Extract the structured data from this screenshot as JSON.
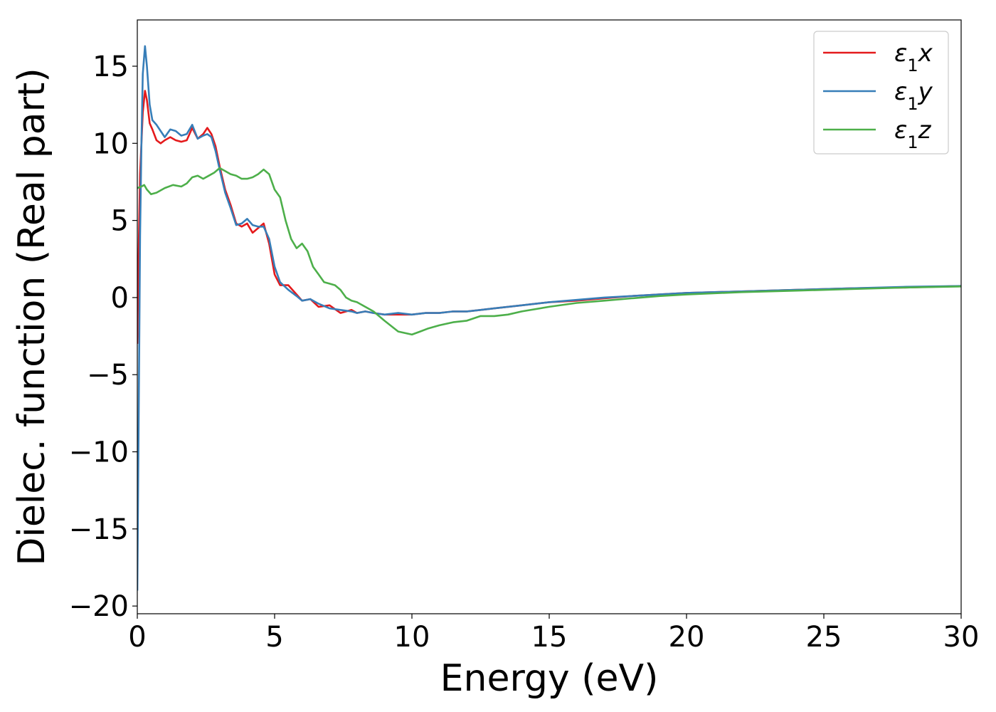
{
  "chart_data": {
    "type": "line",
    "title": "",
    "xlabel": "Energy (eV)",
    "ylabel": "Dielec. function (Real part)",
    "xlim": [
      0,
      30
    ],
    "ylim": [
      -20.5,
      18
    ],
    "xticks": [
      0,
      5,
      10,
      15,
      20,
      25,
      30
    ],
    "xtick_labels": [
      "0",
      "5",
      "10",
      "15",
      "20",
      "25",
      "30"
    ],
    "yticks": [
      -20,
      -15,
      -10,
      -5,
      0,
      5,
      10,
      15
    ],
    "ytick_labels": [
      "−20",
      "−15",
      "−10",
      "−5",
      "0",
      "5",
      "10",
      "15"
    ],
    "grid": false,
    "legend_position": "top-right",
    "series": [
      {
        "name": "ε₁x",
        "legend_base": "ε",
        "legend_sub": "1",
        "legend_var": "x",
        "color": "#e41a1c",
        "x": [
          0,
          0.05,
          0.1,
          0.2,
          0.28,
          0.35,
          0.45,
          0.55,
          0.7,
          0.85,
          1.0,
          1.2,
          1.4,
          1.6,
          1.8,
          2.0,
          2.2,
          2.4,
          2.55,
          2.7,
          2.85,
          3.0,
          3.2,
          3.4,
          3.6,
          3.8,
          4.0,
          4.2,
          4.4,
          4.6,
          4.8,
          5.0,
          5.2,
          5.5,
          5.8,
          6.0,
          6.3,
          6.6,
          7.0,
          7.4,
          7.8,
          8.0,
          8.3,
          8.6,
          9.0,
          9.5,
          10.0,
          10.5,
          11.0,
          11.5,
          12.0,
          12.5,
          13.0,
          14.0,
          15.0,
          16.0,
          17.0,
          18.0,
          19.0,
          20.0,
          22.0,
          24.0,
          26.0,
          28.0,
          30.0
        ],
        "y": [
          -3.0,
          3.0,
          8.0,
          12.0,
          13.4,
          12.8,
          11.3,
          10.9,
          10.2,
          10.0,
          10.2,
          10.4,
          10.2,
          10.1,
          10.2,
          11.0,
          10.3,
          10.6,
          11.0,
          10.6,
          9.8,
          8.5,
          7.0,
          6.0,
          4.8,
          4.6,
          4.8,
          4.2,
          4.5,
          4.8,
          3.5,
          1.5,
          0.8,
          0.8,
          0.2,
          -0.2,
          -0.1,
          -0.6,
          -0.5,
          -1.0,
          -0.8,
          -1.0,
          -0.9,
          -1.0,
          -1.1,
          -1.1,
          -1.1,
          -1.0,
          -1.0,
          -0.9,
          -0.9,
          -0.8,
          -0.7,
          -0.5,
          -0.3,
          -0.2,
          -0.05,
          0.1,
          0.2,
          0.3,
          0.4,
          0.5,
          0.6,
          0.65,
          0.75
        ]
      },
      {
        "name": "ε₁y",
        "legend_base": "ε",
        "legend_sub": "1",
        "legend_var": "y",
        "color": "#377eb8",
        "x": [
          0,
          0.05,
          0.1,
          0.15,
          0.2,
          0.28,
          0.35,
          0.45,
          0.55,
          0.7,
          0.85,
          1.0,
          1.2,
          1.4,
          1.6,
          1.8,
          2.0,
          2.2,
          2.4,
          2.55,
          2.7,
          2.85,
          3.0,
          3.2,
          3.4,
          3.6,
          3.8,
          4.0,
          4.2,
          4.4,
          4.6,
          4.8,
          5.0,
          5.2,
          5.5,
          5.8,
          6.0,
          6.3,
          6.6,
          7.0,
          7.4,
          7.8,
          8.0,
          8.3,
          8.6,
          9.0,
          9.5,
          10.0,
          10.5,
          11.0,
          11.5,
          12.0,
          12.5,
          13.0,
          14.0,
          15.0,
          16.0,
          17.0,
          18.0,
          19.0,
          20.0,
          22.0,
          24.0,
          26.0,
          28.0,
          30.0
        ],
        "y": [
          -19.0,
          -8.0,
          4.0,
          10.0,
          14.5,
          16.3,
          15.0,
          12.5,
          11.5,
          11.2,
          10.8,
          10.4,
          10.9,
          10.8,
          10.5,
          10.6,
          11.2,
          10.3,
          10.5,
          10.6,
          10.4,
          9.5,
          8.3,
          6.8,
          5.8,
          4.7,
          4.8,
          5.1,
          4.7,
          4.6,
          4.6,
          3.8,
          2.0,
          1.0,
          0.5,
          0.1,
          -0.2,
          -0.1,
          -0.4,
          -0.7,
          -0.8,
          -0.9,
          -1.0,
          -0.9,
          -1.0,
          -1.1,
          -1.0,
          -1.1,
          -1.0,
          -1.0,
          -0.9,
          -0.9,
          -0.8,
          -0.7,
          -0.5,
          -0.3,
          -0.15,
          0.0,
          0.1,
          0.2,
          0.3,
          0.4,
          0.5,
          0.6,
          0.7,
          0.75
        ]
      },
      {
        "name": "ε₁z",
        "legend_base": "ε",
        "legend_sub": "1",
        "legend_var": "z",
        "color": "#4daf4a",
        "x": [
          0,
          0.15,
          0.25,
          0.35,
          0.5,
          0.7,
          1.0,
          1.3,
          1.6,
          1.8,
          2.0,
          2.2,
          2.4,
          2.6,
          2.8,
          3.0,
          3.2,
          3.4,
          3.6,
          3.8,
          4.0,
          4.2,
          4.4,
          4.6,
          4.8,
          5.0,
          5.2,
          5.4,
          5.6,
          5.8,
          6.0,
          6.2,
          6.4,
          6.6,
          6.8,
          7.0,
          7.2,
          7.4,
          7.6,
          7.8,
          8.0,
          8.3,
          8.6,
          9.0,
          9.5,
          10.0,
          10.3,
          10.6,
          11.0,
          11.5,
          12.0,
          12.5,
          13.0,
          13.5,
          14.0,
          15.0,
          16.0,
          17.0,
          18.0,
          19.0,
          20.0,
          22.0,
          24.0,
          26.0,
          28.0,
          30.0
        ],
        "y": [
          7.1,
          7.2,
          7.3,
          7.0,
          6.7,
          6.8,
          7.1,
          7.3,
          7.2,
          7.4,
          7.8,
          7.9,
          7.7,
          7.9,
          8.1,
          8.4,
          8.2,
          8.0,
          7.9,
          7.7,
          7.7,
          7.8,
          8.0,
          8.3,
          8.0,
          7.0,
          6.5,
          5.0,
          3.8,
          3.2,
          3.5,
          3.0,
          2.0,
          1.5,
          1.0,
          0.9,
          0.8,
          0.5,
          0.0,
          -0.2,
          -0.3,
          -0.6,
          -0.9,
          -1.5,
          -2.2,
          -2.4,
          -2.2,
          -2.0,
          -1.8,
          -1.6,
          -1.5,
          -1.2,
          -1.2,
          -1.1,
          -0.9,
          -0.6,
          -0.35,
          -0.2,
          -0.05,
          0.1,
          0.2,
          0.35,
          0.45,
          0.55,
          0.65,
          0.72
        ]
      }
    ]
  }
}
